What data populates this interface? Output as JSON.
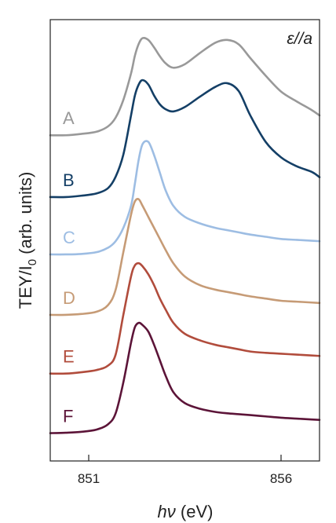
{
  "chart_data": {
    "type": "line",
    "annotation": "ε//a",
    "xlabel_italic": "hν",
    "xlabel_unit": " (eV)",
    "ylabel_main": "TEY/I",
    "ylabel_sub": "0",
    "ylabel_rest": " (arb. units)",
    "xlim": [
      850,
      857
    ],
    "ylim": [
      0,
      1
    ],
    "x_ticks": [
      {
        "value": 851,
        "label": "851"
      },
      {
        "value": 856,
        "label": "856"
      }
    ],
    "x": [
      850.0,
      850.4,
      850.8,
      851.2,
      851.5,
      851.7,
      851.9,
      852.1,
      852.2,
      852.3,
      852.4,
      852.55,
      852.7,
      852.85,
      853.0,
      853.2,
      853.5,
      853.9,
      854.3,
      854.6,
      854.9,
      855.2,
      855.6,
      856.0,
      856.4,
      856.8,
      857.0
    ],
    "series": [
      {
        "name": "A",
        "color": "#999999",
        "values": [
          0.738,
          0.738,
          0.741,
          0.746,
          0.758,
          0.778,
          0.818,
          0.878,
          0.918,
          0.945,
          0.958,
          0.954,
          0.937,
          0.917,
          0.901,
          0.891,
          0.899,
          0.925,
          0.948,
          0.954,
          0.944,
          0.913,
          0.873,
          0.837,
          0.815,
          0.795,
          0.783
        ]
      },
      {
        "name": "B",
        "color": "#143f66",
        "values": [
          0.598,
          0.598,
          0.601,
          0.606,
          0.618,
          0.644,
          0.694,
          0.783,
          0.828,
          0.853,
          0.863,
          0.853,
          0.828,
          0.808,
          0.797,
          0.792,
          0.802,
          0.826,
          0.848,
          0.856,
          0.838,
          0.783,
          0.723,
          0.688,
          0.668,
          0.655,
          0.643
        ]
      },
      {
        "name": "C",
        "color": "#9dbde3",
        "values": [
          0.468,
          0.468,
          0.469,
          0.473,
          0.483,
          0.498,
          0.528,
          0.578,
          0.628,
          0.683,
          0.718,
          0.723,
          0.693,
          0.653,
          0.613,
          0.578,
          0.553,
          0.538,
          0.528,
          0.523,
          0.518,
          0.513,
          0.508,
          0.503,
          0.501,
          0.499,
          0.498
        ]
      },
      {
        "name": "D",
        "color": "#c69b76",
        "values": [
          0.331,
          0.331,
          0.333,
          0.338,
          0.353,
          0.388,
          0.473,
          0.558,
          0.588,
          0.593,
          0.578,
          0.553,
          0.528,
          0.503,
          0.478,
          0.448,
          0.418,
          0.398,
          0.388,
          0.383,
          0.378,
          0.373,
          0.368,
          0.363,
          0.361,
          0.359,
          0.358
        ]
      },
      {
        "name": "E",
        "color": "#b14c3c",
        "values": [
          0.198,
          0.198,
          0.201,
          0.206,
          0.216,
          0.241,
          0.331,
          0.418,
          0.443,
          0.448,
          0.441,
          0.423,
          0.398,
          0.368,
          0.343,
          0.313,
          0.288,
          0.273,
          0.263,
          0.258,
          0.253,
          0.248,
          0.245,
          0.243,
          0.241,
          0.239,
          0.238
        ]
      },
      {
        "name": "F",
        "color": "#5c1438",
        "values": [
          0.063,
          0.064,
          0.066,
          0.071,
          0.083,
          0.108,
          0.178,
          0.268,
          0.303,
          0.313,
          0.308,
          0.293,
          0.263,
          0.228,
          0.193,
          0.156,
          0.131,
          0.118,
          0.111,
          0.108,
          0.106,
          0.104,
          0.101,
          0.098,
          0.096,
          0.094,
          0.093
        ]
      }
    ]
  }
}
